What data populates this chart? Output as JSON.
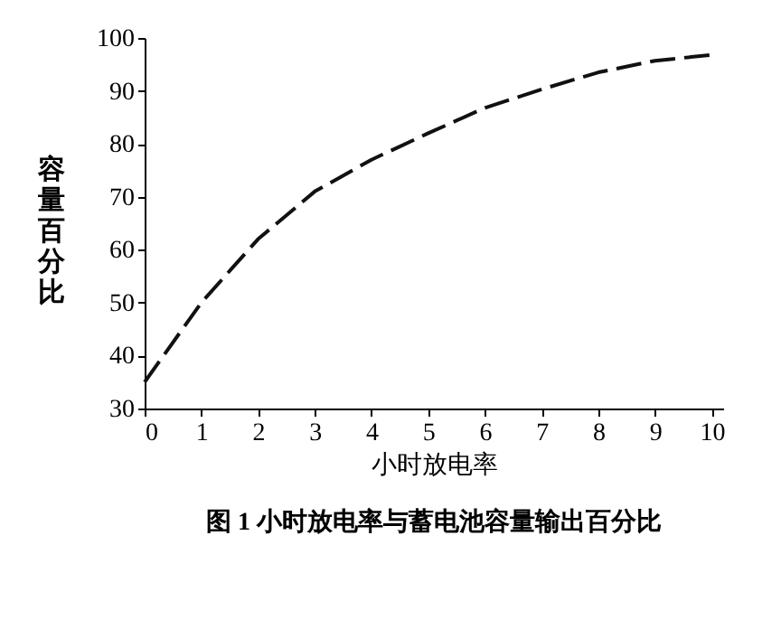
{
  "chart_data": {
    "type": "line",
    "title": "图 1 小时放电率与蓄电池容量输出百分比",
    "xlabel": "小时放电率",
    "ylabel": "容量百分比",
    "x": [
      0,
      1,
      2,
      3,
      4,
      5,
      6,
      7,
      8,
      9,
      10
    ],
    "series": [
      {
        "color": "#111111",
        "values": [
          35,
          50,
          62,
          71,
          77,
          82,
          86.8,
          90.3,
          93.5,
          95.7,
          96.8
        ]
      }
    ],
    "xlim": [
      0,
      10.2
    ],
    "xticks": [
      0,
      1,
      2,
      3,
      4,
      5,
      6,
      7,
      8,
      9,
      10
    ],
    "ylim": [
      30,
      100
    ],
    "yticks": [
      30,
      40,
      50,
      60,
      70,
      80,
      90,
      100
    ],
    "grid": false,
    "line_style": "dashed",
    "marker": "none"
  }
}
